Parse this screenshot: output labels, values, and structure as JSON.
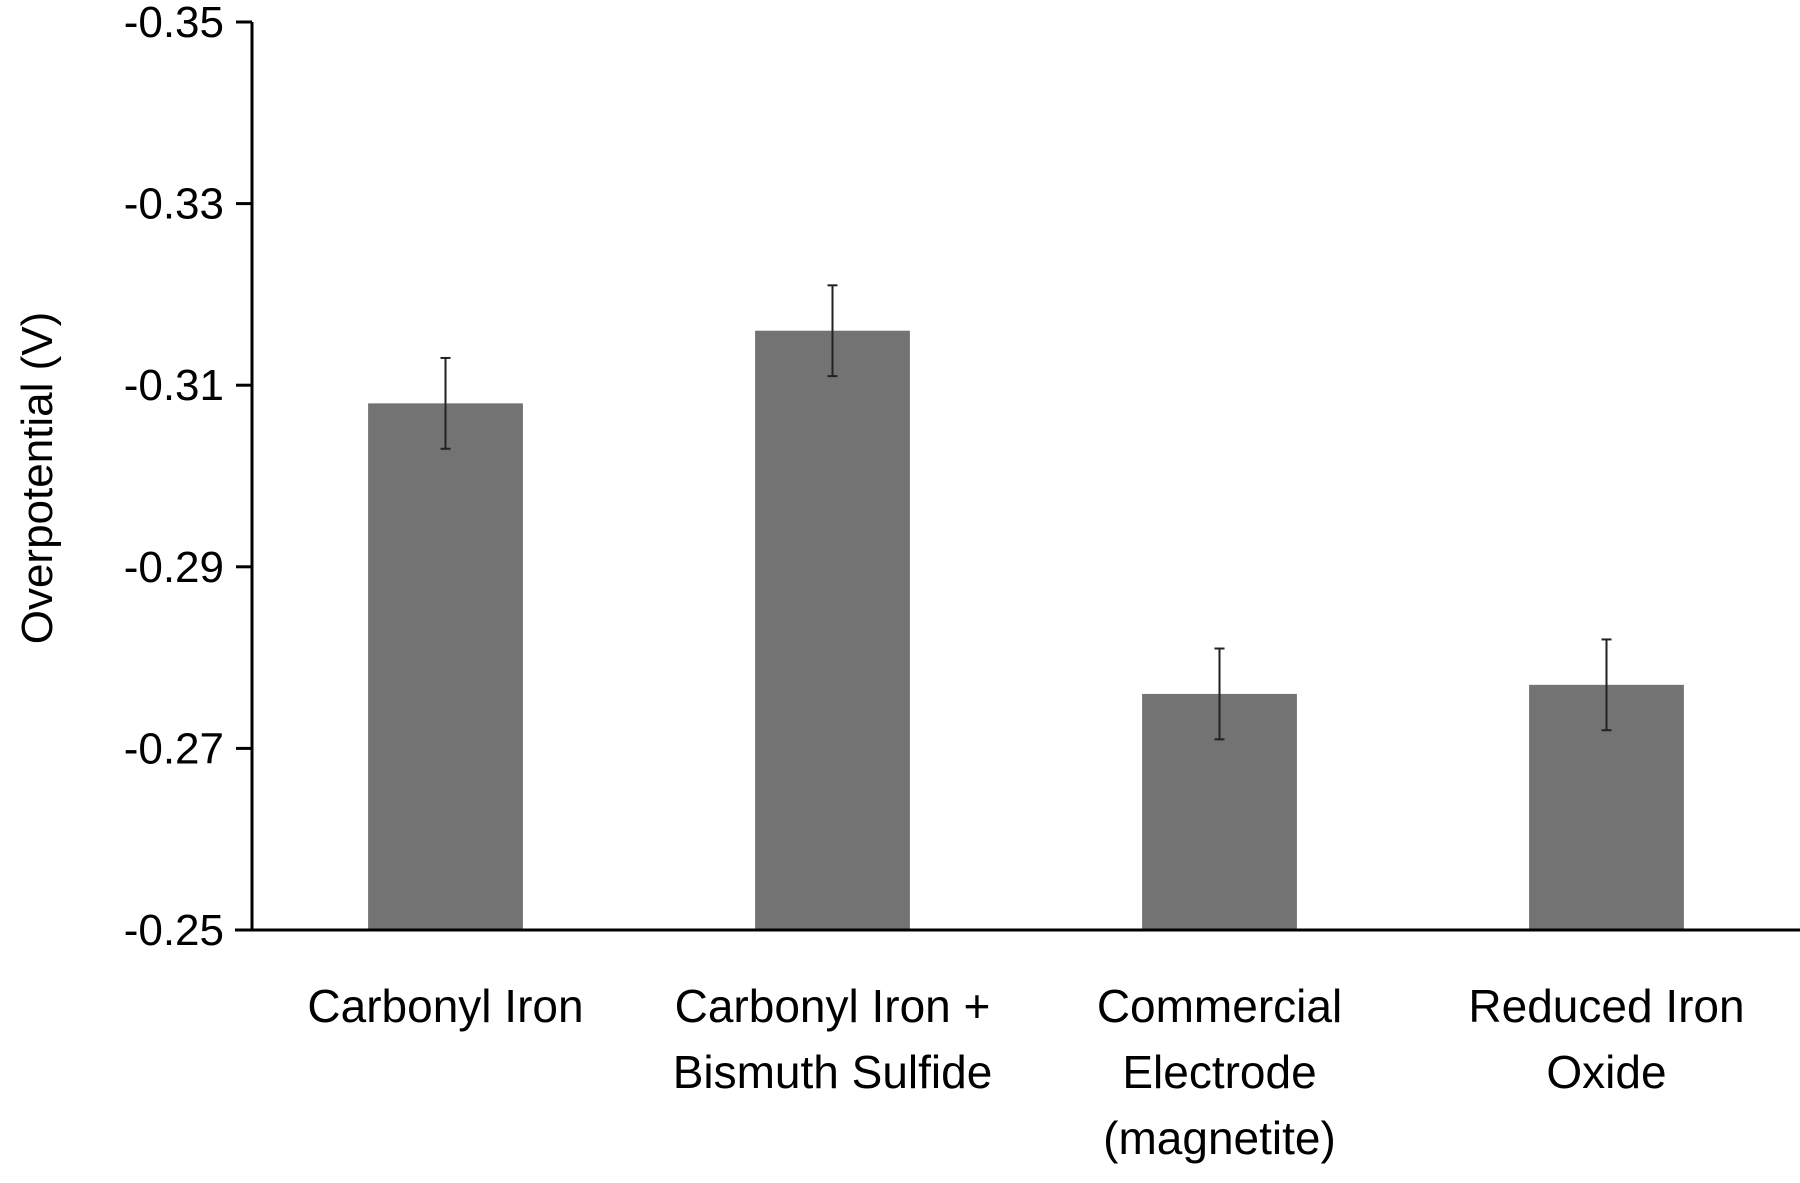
{
  "chart_data": {
    "type": "bar",
    "title": "",
    "xlabel": "",
    "ylabel": "Overpotential (V)",
    "ylim": [
      -0.25,
      -0.35
    ],
    "y_axis_inverted": true,
    "yticks": [
      -0.35,
      -0.33,
      -0.31,
      -0.29,
      -0.27,
      -0.25
    ],
    "ytick_labels": [
      "-0.35",
      "-0.33",
      "-0.31",
      "-0.29",
      "-0.27",
      "-0.25"
    ],
    "grid": false,
    "legend": "none",
    "bar_color": "#737373",
    "categories": [
      [
        "Carbonyl Iron"
      ],
      [
        "Carbonyl Iron +",
        "Bismuth Sulfide"
      ],
      [
        "Commercial",
        "Electrode",
        "(magnetite)"
      ],
      [
        "Reduced Iron",
        "Oxide"
      ]
    ],
    "values": [
      -0.308,
      -0.316,
      -0.276,
      -0.277
    ],
    "errors": [
      0.005,
      0.005,
      0.005,
      0.005
    ]
  }
}
